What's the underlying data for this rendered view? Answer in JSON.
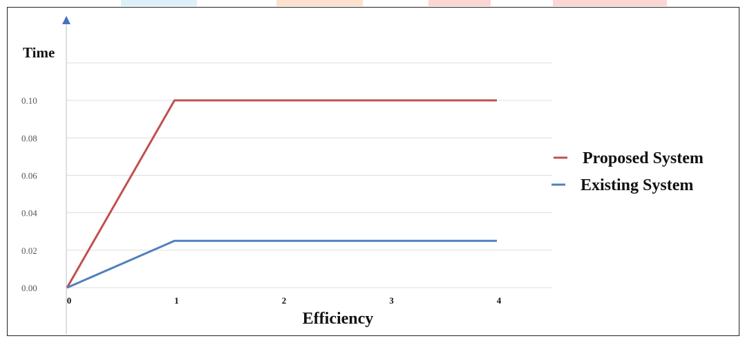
{
  "chart_data": {
    "type": "line",
    "title": "",
    "xlabel": "Efficiency",
    "ylabel": "Time",
    "x": [
      0,
      1,
      2,
      3,
      4
    ],
    "x_tick_labels": [
      "0",
      "1",
      "2",
      "3",
      "4"
    ],
    "y_tick_labels": [
      "0.00",
      "0.02",
      "0.04",
      "0.06",
      "0.08",
      "0.10"
    ],
    "y_ticks": [
      0,
      0.02,
      0.04,
      0.06,
      0.08,
      0.1
    ],
    "xlim": [
      0,
      4
    ],
    "ylim": [
      0,
      0.12
    ],
    "grid": true,
    "legend_position": "right",
    "series": [
      {
        "name": "Proposed System",
        "color": "#c0504d",
        "values": [
          0,
          0.1,
          0.1,
          0.1,
          0.1
        ]
      },
      {
        "name": "Existing System",
        "color": "#4f81bd",
        "values": [
          0,
          0.025,
          0.025,
          0.025,
          0.025
        ]
      }
    ]
  },
  "colors": {
    "axis_arrow": "#4472c4",
    "gridline": "#dddddd",
    "border": "#222222"
  }
}
